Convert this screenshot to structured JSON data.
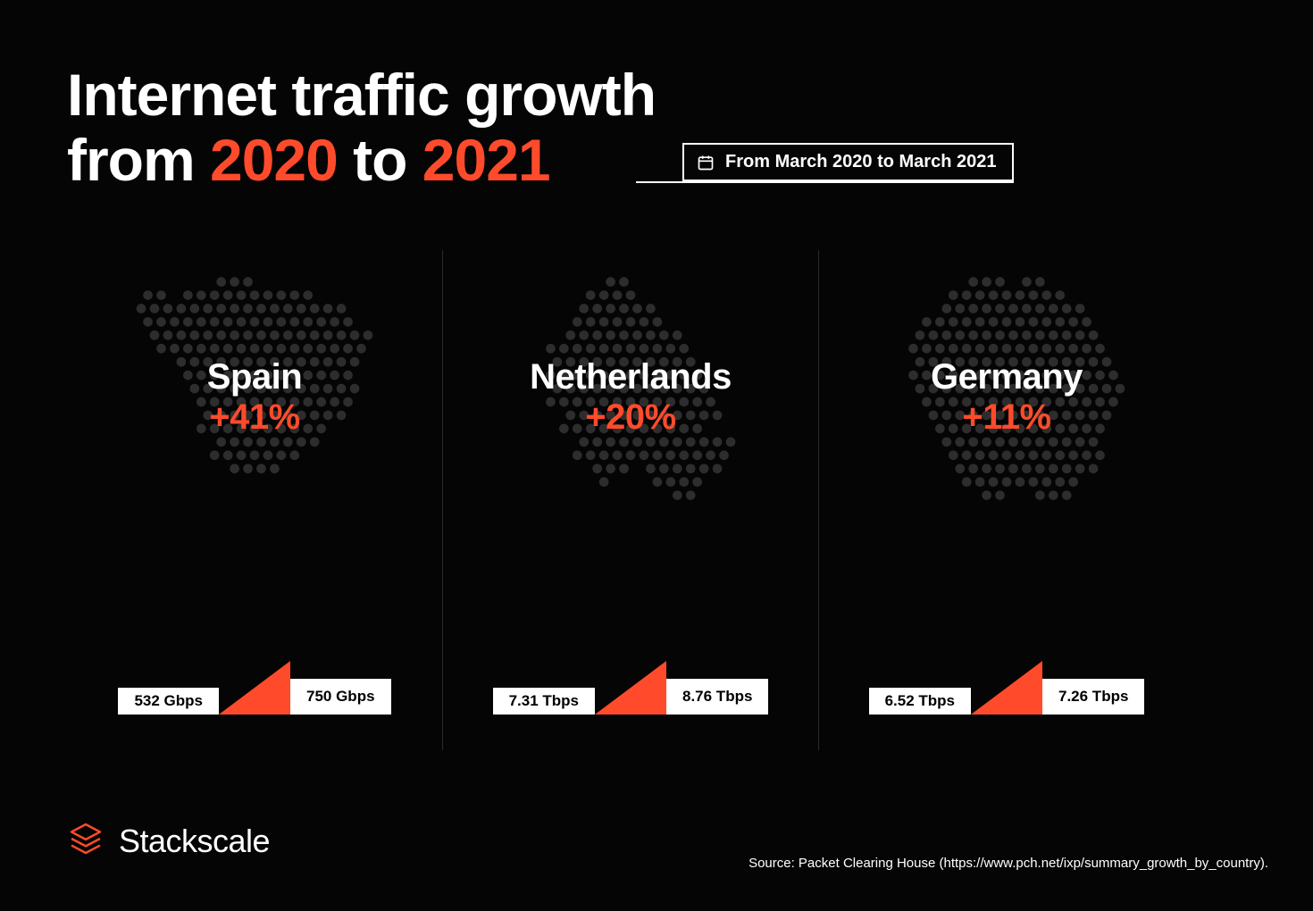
{
  "colors": {
    "background": "#050505",
    "accent": "#ff4b2b",
    "text": "#ffffff",
    "dot": "#2d2d2d",
    "divider": "#2a2a2a",
    "bar_bg": "#ffffff",
    "bar_text": "#000000"
  },
  "typography": {
    "title_fontsize": 66,
    "title_weight": 800,
    "country_fontsize": 40,
    "country_weight": 800,
    "bar_fontsize": 17,
    "logo_fontsize": 36,
    "source_fontsize": 15,
    "date_fontsize": 20
  },
  "title": {
    "line1": "Internet traffic growth",
    "line2_prefix": "from ",
    "year1": "2020",
    "line2_mid": " to ",
    "year2": "2021"
  },
  "date_badge": "From March 2020 to March 2021",
  "countries": [
    {
      "name": "Spain",
      "growth_pct": "+41%",
      "from_value": "532 Gbps",
      "to_value": "750 Gbps",
      "map": "spain"
    },
    {
      "name": "Netherlands",
      "growth_pct": "+20%",
      "from_value": "7.31 Tbps",
      "to_value": "8.76 Tbps",
      "map": "netherlands"
    },
    {
      "name": "Germany",
      "growth_pct": "+11%",
      "from_value": "6.52 Tbps",
      "to_value": "7.26 Tbps",
      "map": "germany"
    }
  ],
  "growth_shape": {
    "bar_left_height": 30,
    "bar_right_height": 40,
    "triangle_width": 80,
    "triangle_height": 60
  },
  "logo": {
    "brand": "Stackscale"
  },
  "source": "Source: Packet Clearing House (https://www.pch.net/ixp/summary_growth_by_country).",
  "map_dot": {
    "radius": 5,
    "spacing": 14
  }
}
